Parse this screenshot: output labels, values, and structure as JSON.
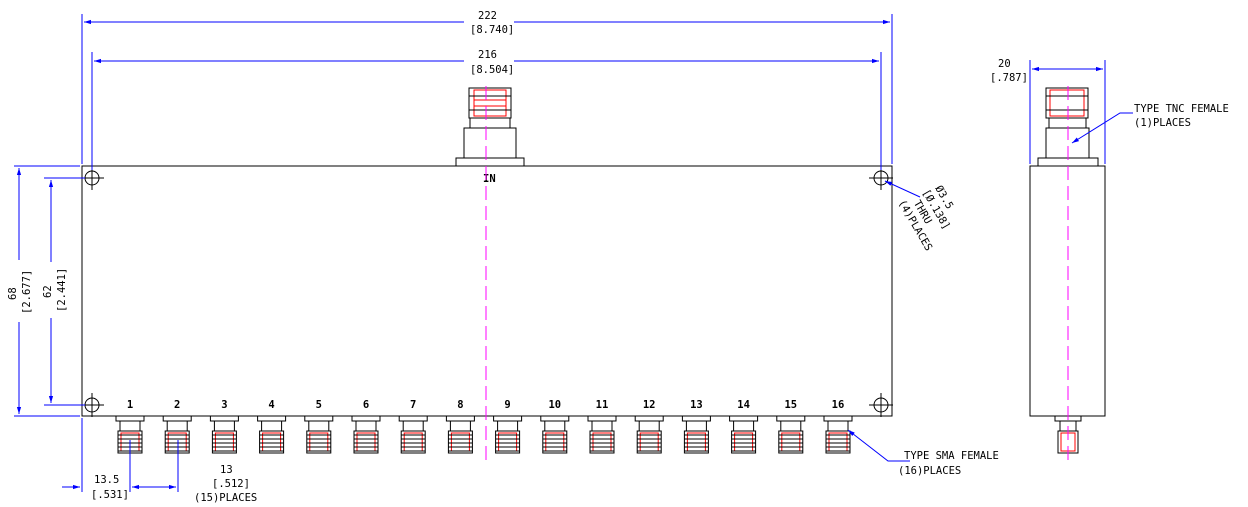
{
  "colors": {
    "dimension": "#0000ff",
    "centerline": "#ff00ff",
    "thread": "#ff0000",
    "outline": "#000000"
  },
  "dimensions": {
    "overall_width": {
      "mm": "222",
      "inch": "[8.740]"
    },
    "hole_spacing_width": {
      "mm": "216",
      "inch": "[8.504]"
    },
    "overall_height": {
      "mm": "68",
      "inch": "[2.677]"
    },
    "hole_spacing_height": {
      "mm": "62",
      "inch": "[2.441]"
    },
    "depth": {
      "mm": "20",
      "inch": "[.787]"
    },
    "first_port_offset": {
      "mm": "13.5",
      "inch": "[.531]"
    },
    "port_pitch": {
      "mm": "13",
      "inch": "[.512]",
      "places": "(15)PLACES"
    }
  },
  "holes": {
    "dia_mm": "Ø3.5",
    "dia_inch": "[Ø.138]",
    "thru": "THRU",
    "places": "(4)PLACES"
  },
  "input_label": "IN",
  "output_ports": [
    "1",
    "2",
    "3",
    "4",
    "5",
    "6",
    "7",
    "8",
    "9",
    "10",
    "11",
    "12",
    "13",
    "14",
    "15",
    "16"
  ],
  "callouts": {
    "tnc": {
      "line1": "TYPE TNC FEMALE",
      "line2": "(1)PLACES"
    },
    "sma": {
      "line1": "TYPE SMA FEMALE",
      "line2": "(16)PLACES"
    }
  }
}
